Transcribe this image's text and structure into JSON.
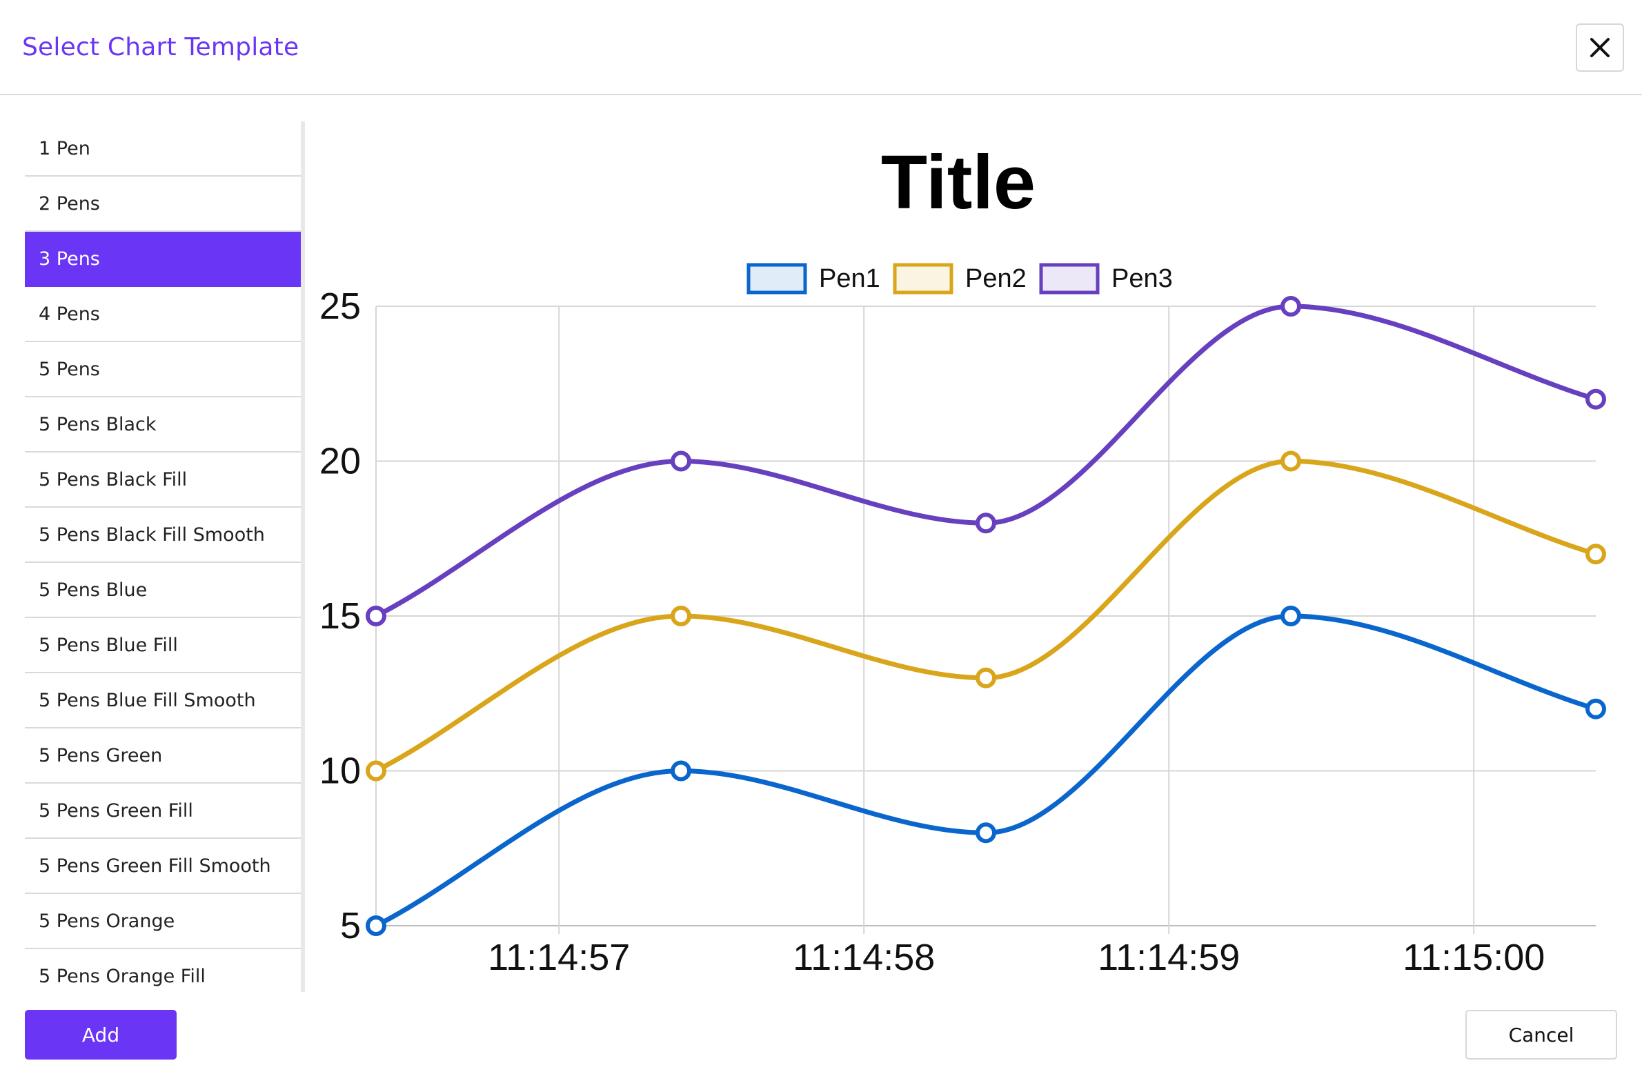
{
  "header": {
    "title": "Select Chart Template",
    "close_icon": "close-icon"
  },
  "templates": {
    "selected": "3 Pens",
    "items": [
      "1 Pen",
      "2 Pens",
      "3 Pens",
      "4 Pens",
      "5 Pens",
      "5 Pens Black",
      "5 Pens Black Fill",
      "5 Pens Black Fill Smooth",
      "5 Pens Blue",
      "5 Pens Blue Fill",
      "5 Pens Blue Fill Smooth",
      "5 Pens Green",
      "5 Pens Green Fill",
      "5 Pens Green Fill Smooth",
      "5 Pens Orange",
      "5 Pens Orange Fill"
    ]
  },
  "footer": {
    "add_label": "Add",
    "cancel_label": "Cancel"
  },
  "colors": {
    "accent": "#6a35f5",
    "pen1": "#0a66cc",
    "pen2": "#d9a51a",
    "pen3": "#6640bf"
  },
  "chart_data": {
    "type": "line",
    "title": "Title",
    "smooth": true,
    "grid": true,
    "legend_position": "top",
    "x": [
      "11:14:56.4",
      "11:14:57.4",
      "11:14:58.4",
      "11:14:59.4",
      "11:15:00.4"
    ],
    "x_ticks": [
      "11:14:57",
      "11:14:58",
      "11:14:59",
      "11:15:00"
    ],
    "y_ticks": [
      5,
      10,
      15,
      20,
      25
    ],
    "ylim": [
      5,
      25
    ],
    "series": [
      {
        "name": "Pen1",
        "color": "#0a66cc",
        "values": [
          5,
          10,
          8,
          15,
          12
        ]
      },
      {
        "name": "Pen2",
        "color": "#d9a51a",
        "values": [
          10,
          15,
          13,
          20,
          17
        ]
      },
      {
        "name": "Pen3",
        "color": "#6640bf",
        "values": [
          15,
          20,
          18,
          25,
          22
        ]
      }
    ]
  }
}
